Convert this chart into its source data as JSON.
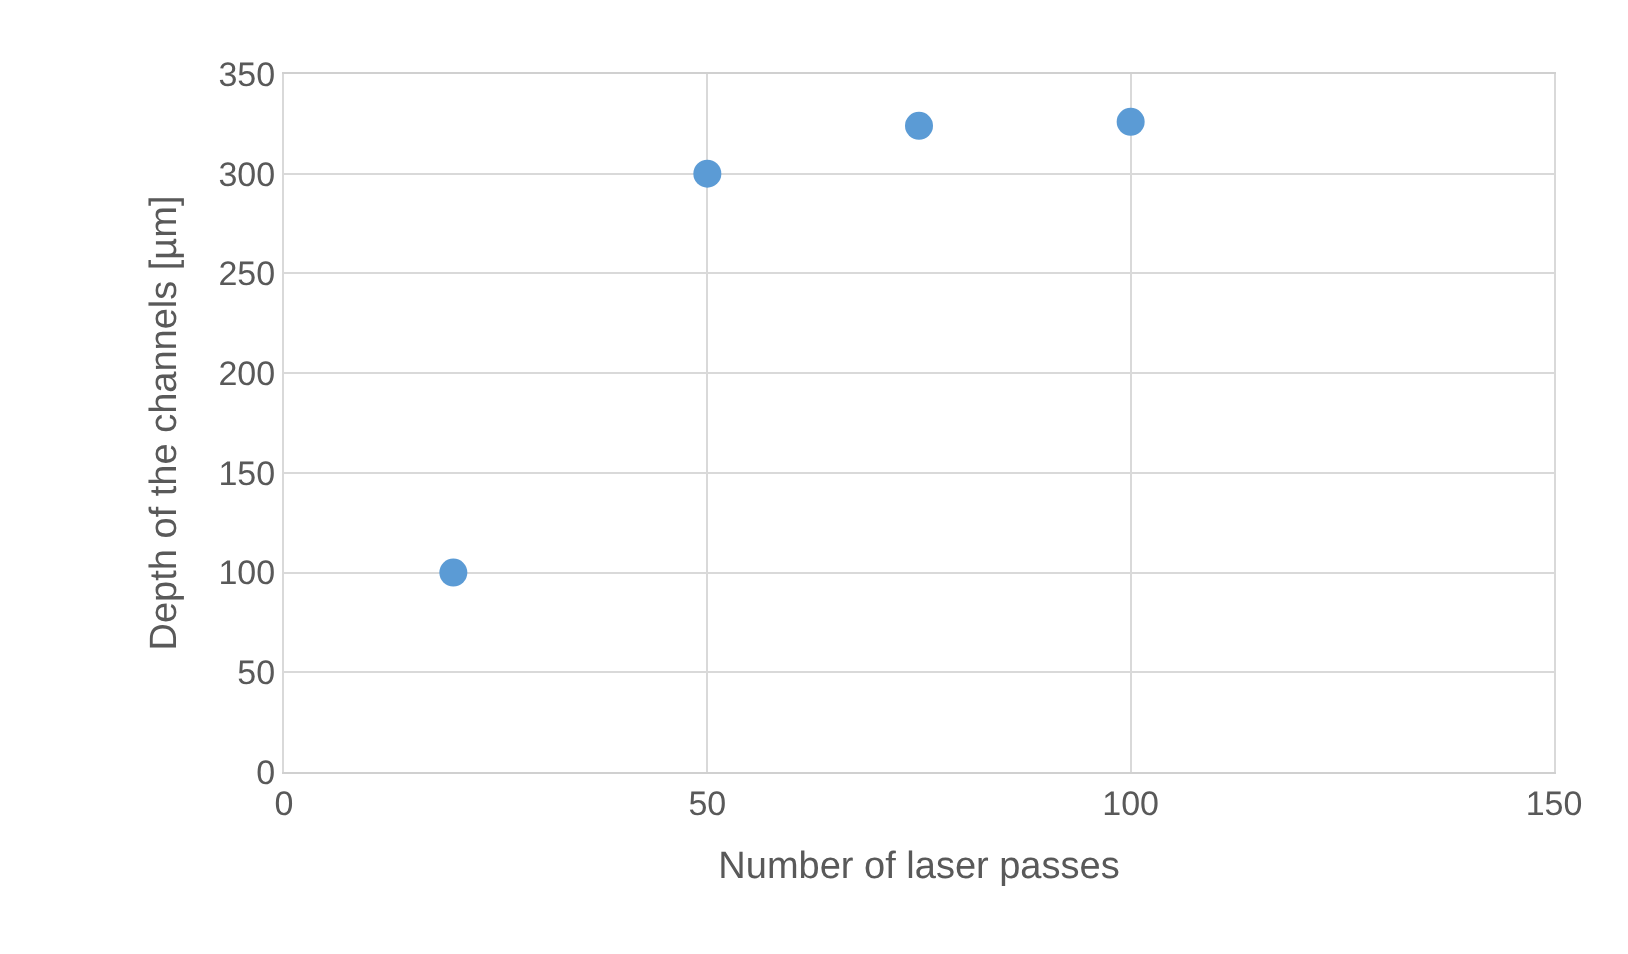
{
  "chart_data": {
    "type": "scatter",
    "xlabel": "Number of laser passes",
    "ylabel": "Depth of the channels [µm]",
    "x": [
      20,
      50,
      75,
      100
    ],
    "series": [
      {
        "color": "#5b9bd5",
        "values": [
          100,
          300,
          324,
          326
        ]
      }
    ],
    "xlim": [
      0,
      150
    ],
    "xticks": [
      0,
      50,
      100,
      150
    ],
    "ylim": [
      0,
      350
    ],
    "yticks": [
      0,
      50,
      100,
      150,
      200,
      250,
      300,
      350
    ],
    "grid": true,
    "marker": "circle"
  }
}
